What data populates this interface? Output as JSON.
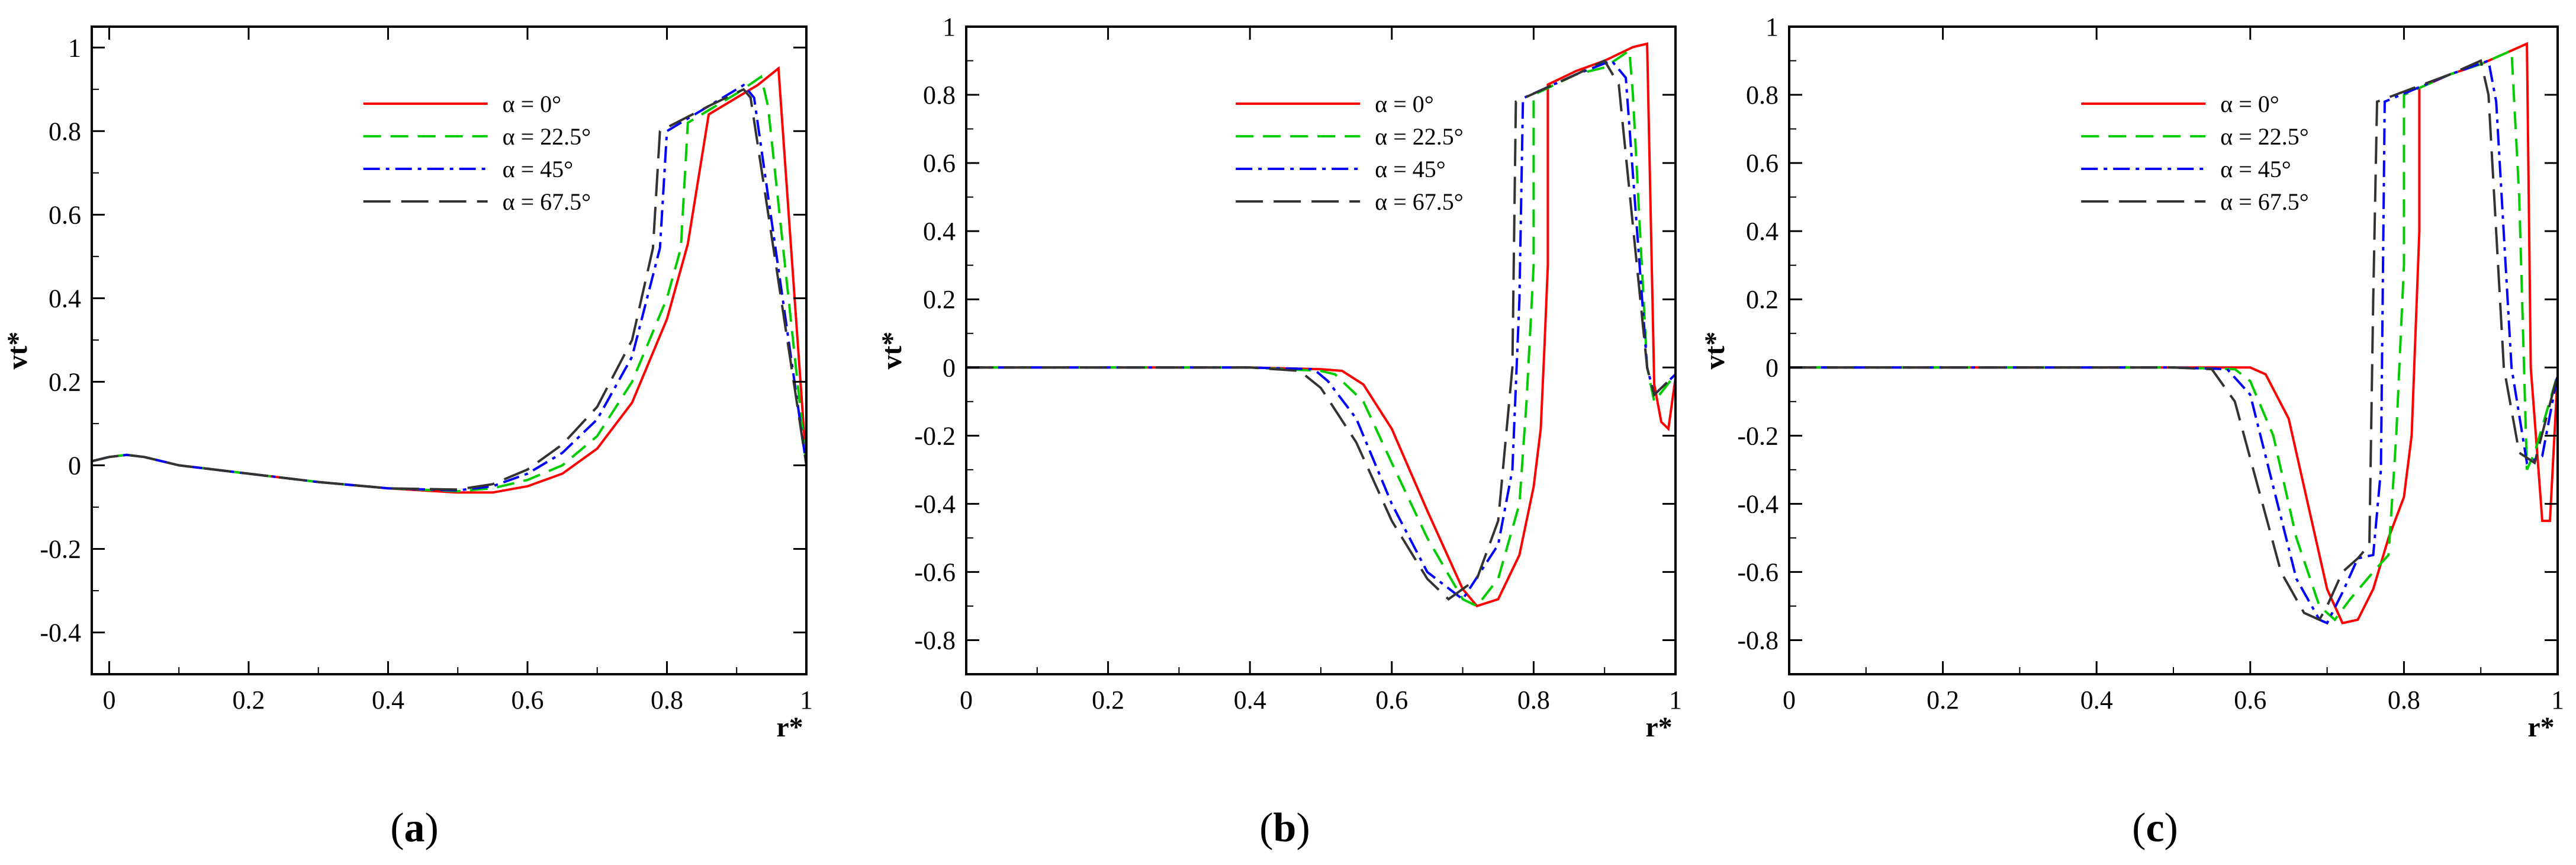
{
  "figure": {
    "panel_labels": [
      "(a)",
      "(b)",
      "(c)"
    ]
  },
  "chart_data": [
    {
      "type": "line",
      "panel": "(a)",
      "xlabel": "r*",
      "ylabel": "vt*",
      "xlim": [
        -0.025,
        1.0
      ],
      "ylim": [
        -0.5,
        1.05
      ],
      "xticks": [
        0,
        0.2,
        0.4,
        0.6,
        0.8,
        1
      ],
      "xtick_labels": [
        "0",
        "0.2",
        "0.4",
        "0.6",
        "0.8",
        "1"
      ],
      "yticks": [
        -0.4,
        -0.2,
        0,
        0.2,
        0.4,
        0.6,
        0.8,
        1
      ],
      "ytick_labels": [
        "-0.4",
        "-0.2",
        "0",
        "0.2",
        "0.4",
        "0.6",
        "0.8",
        "1"
      ],
      "series": [
        {
          "name": "α = 0°",
          "x": [
            -0.025,
            0.0,
            0.025,
            0.05,
            0.1,
            0.2,
            0.3,
            0.4,
            0.5,
            0.55,
            0.6,
            0.65,
            0.7,
            0.75,
            0.8,
            0.83,
            0.86,
            0.9,
            0.93,
            0.96,
            0.965,
            1.0
          ],
          "y": [
            0.01,
            0.02,
            0.025,
            0.02,
            0.0,
            -0.02,
            -0.04,
            -0.055,
            -0.065,
            -0.065,
            -0.05,
            -0.02,
            0.04,
            0.15,
            0.35,
            0.53,
            0.84,
            0.88,
            0.91,
            0.95,
            0.83,
            0.0
          ]
        },
        {
          "name": "α = 22.5°",
          "x": [
            -0.025,
            0.0,
            0.025,
            0.05,
            0.1,
            0.2,
            0.3,
            0.4,
            0.5,
            0.55,
            0.6,
            0.65,
            0.7,
            0.75,
            0.8,
            0.82,
            0.83,
            0.86,
            0.9,
            0.935,
            0.945,
            1.0
          ],
          "y": [
            0.01,
            0.02,
            0.025,
            0.02,
            0.0,
            -0.02,
            -0.04,
            -0.055,
            -0.062,
            -0.055,
            -0.035,
            0.0,
            0.07,
            0.2,
            0.4,
            0.52,
            0.82,
            0.85,
            0.89,
            0.93,
            0.86,
            0.0
          ]
        },
        {
          "name": "α = 45°",
          "x": [
            -0.025,
            0.0,
            0.025,
            0.05,
            0.1,
            0.2,
            0.3,
            0.4,
            0.5,
            0.55,
            0.6,
            0.65,
            0.7,
            0.75,
            0.79,
            0.8,
            0.86,
            0.91,
            0.925,
            1.0
          ],
          "y": [
            0.01,
            0.02,
            0.025,
            0.02,
            0.0,
            -0.02,
            -0.04,
            -0.055,
            -0.06,
            -0.05,
            -0.02,
            0.03,
            0.11,
            0.26,
            0.52,
            0.8,
            0.86,
            0.91,
            0.88,
            0.0
          ]
        },
        {
          "name": "α = 67.5°",
          "x": [
            -0.025,
            0.0,
            0.025,
            0.05,
            0.1,
            0.2,
            0.3,
            0.4,
            0.5,
            0.55,
            0.6,
            0.65,
            0.7,
            0.75,
            0.78,
            0.79,
            0.86,
            0.91,
            0.92,
            1.0
          ],
          "y": [
            0.01,
            0.02,
            0.025,
            0.02,
            0.0,
            -0.02,
            -0.04,
            -0.055,
            -0.058,
            -0.045,
            -0.01,
            0.05,
            0.14,
            0.3,
            0.52,
            0.8,
            0.86,
            0.9,
            0.88,
            0.0
          ]
        }
      ],
      "legend": "upper-center"
    },
    {
      "type": "line",
      "panel": "(b)",
      "xlabel": "r*",
      "ylabel": "vt*",
      "xlim": [
        0,
        1.0
      ],
      "ylim": [
        -0.9,
        1.0
      ],
      "xticks": [
        0,
        0.2,
        0.4,
        0.6,
        0.8,
        1
      ],
      "xtick_labels": [
        "0",
        "0.2",
        "0.4",
        "0.6",
        "0.8",
        "1"
      ],
      "yticks": [
        -0.8,
        -0.6,
        -0.4,
        -0.2,
        0,
        0.2,
        0.4,
        0.6,
        0.8,
        1
      ],
      "ytick_labels": [
        "-0.8",
        "-0.6",
        "-0.4",
        "-0.2",
        "0",
        "0.2",
        "0.4",
        "0.6",
        "0.8",
        "1"
      ],
      "series": [
        {
          "name": "α = 0°",
          "x": [
            0,
            0.1,
            0.2,
            0.3,
            0.4,
            0.5,
            0.53,
            0.56,
            0.6,
            0.65,
            0.7,
            0.72,
            0.75,
            0.78,
            0.8,
            0.81,
            0.815,
            0.82,
            0.82,
            0.86,
            0.9,
            0.94,
            0.96,
            0.97,
            0.98,
            0.99,
            1.0
          ],
          "y": [
            0,
            0,
            0,
            0,
            0,
            -0.005,
            -0.01,
            -0.05,
            -0.18,
            -0.42,
            -0.65,
            -0.7,
            -0.68,
            -0.55,
            -0.35,
            -0.18,
            0.05,
            0.3,
            0.83,
            0.87,
            0.9,
            0.94,
            0.95,
            -0.05,
            -0.16,
            -0.18,
            -0.03
          ]
        },
        {
          "name": "α = 22.5°",
          "x": [
            0,
            0.1,
            0.2,
            0.3,
            0.4,
            0.5,
            0.52,
            0.56,
            0.6,
            0.65,
            0.7,
            0.72,
            0.75,
            0.78,
            0.79,
            0.8,
            0.8,
            0.86,
            0.9,
            0.935,
            0.94,
            0.96,
            0.97,
            1.0
          ],
          "y": [
            0,
            0,
            0,
            0,
            0,
            -0.01,
            -0.02,
            -0.1,
            -0.28,
            -0.5,
            -0.68,
            -0.7,
            -0.62,
            -0.4,
            -0.1,
            0.3,
            0.8,
            0.86,
            0.88,
            0.93,
            0.8,
            0.0,
            -0.1,
            -0.02
          ]
        },
        {
          "name": "α = 45°",
          "x": [
            0,
            0.1,
            0.2,
            0.3,
            0.4,
            0.49,
            0.51,
            0.55,
            0.6,
            0.65,
            0.7,
            0.75,
            0.77,
            0.78,
            0.785,
            0.86,
            0.91,
            0.93,
            0.96,
            0.97,
            1.0
          ],
          "y": [
            0,
            0,
            0,
            0,
            0,
            -0.005,
            -0.04,
            -0.15,
            -0.4,
            -0.6,
            -0.68,
            -0.52,
            -0.3,
            0.2,
            0.79,
            0.86,
            0.9,
            0.85,
            0.0,
            -0.08,
            -0.02
          ]
        },
        {
          "name": "α = 67.5°",
          "x": [
            0,
            0.1,
            0.2,
            0.3,
            0.4,
            0.47,
            0.5,
            0.55,
            0.6,
            0.65,
            0.68,
            0.72,
            0.75,
            0.77,
            0.775,
            0.86,
            0.9,
            0.92,
            0.96,
            0.97,
            1.0
          ],
          "y": [
            0,
            0,
            0,
            0,
            0,
            -0.01,
            -0.06,
            -0.22,
            -0.45,
            -0.62,
            -0.68,
            -0.62,
            -0.45,
            0.0,
            0.78,
            0.86,
            0.9,
            0.83,
            0.0,
            -0.08,
            -0.02
          ]
        }
      ],
      "legend": "upper-center"
    },
    {
      "type": "line",
      "panel": "(c)",
      "xlabel": "r*",
      "ylabel": "vt*",
      "xlim": [
        0,
        1.0
      ],
      "ylim": [
        -0.9,
        1.0
      ],
      "xticks": [
        0,
        0.2,
        0.4,
        0.6,
        0.8,
        1
      ],
      "xtick_labels": [
        "0",
        "0.2",
        "0.4",
        "0.6",
        "0.8",
        "1"
      ],
      "yticks": [
        -0.8,
        -0.6,
        -0.4,
        -0.2,
        0,
        0.2,
        0.4,
        0.6,
        0.8,
        1
      ],
      "ytick_labels": [
        "-0.8",
        "-0.6",
        "-0.4",
        "-0.2",
        "0",
        "0.2",
        "0.4",
        "0.6",
        "0.8",
        "1"
      ],
      "series": [
        {
          "name": "α = 0°",
          "x": [
            0,
            0.1,
            0.2,
            0.3,
            0.4,
            0.5,
            0.6,
            0.62,
            0.65,
            0.68,
            0.7,
            0.72,
            0.74,
            0.76,
            0.78,
            0.8,
            0.81,
            0.815,
            0.82,
            0.82,
            0.86,
            0.9,
            0.94,
            0.96,
            0.965,
            0.975,
            0.98,
            0.99,
            1.0
          ],
          "y": [
            0,
            0,
            0,
            0,
            0,
            0,
            0,
            -0.02,
            -0.15,
            -0.45,
            -0.65,
            -0.75,
            -0.74,
            -0.65,
            -0.5,
            -0.38,
            -0.2,
            0.1,
            0.4,
            0.82,
            0.86,
            0.89,
            0.93,
            0.95,
            0.0,
            -0.3,
            -0.45,
            -0.45,
            -0.02
          ]
        },
        {
          "name": "α = 22.5°",
          "x": [
            0,
            0.1,
            0.2,
            0.3,
            0.4,
            0.5,
            0.58,
            0.6,
            0.63,
            0.66,
            0.69,
            0.71,
            0.73,
            0.76,
            0.78,
            0.79,
            0.8,
            0.8,
            0.86,
            0.9,
            0.94,
            0.95,
            0.96,
            0.97,
            1.0
          ],
          "y": [
            0,
            0,
            0,
            0,
            0,
            0,
            -0.005,
            -0.04,
            -0.2,
            -0.5,
            -0.7,
            -0.74,
            -0.68,
            -0.6,
            -0.55,
            -0.2,
            0.3,
            0.8,
            0.86,
            0.89,
            0.93,
            0.5,
            -0.3,
            -0.25,
            -0.02
          ]
        },
        {
          "name": "α = 45°",
          "x": [
            0,
            0.1,
            0.2,
            0.3,
            0.4,
            0.5,
            0.57,
            0.6,
            0.63,
            0.66,
            0.69,
            0.7,
            0.72,
            0.74,
            0.76,
            0.77,
            0.775,
            0.86,
            0.91,
            0.92,
            0.94,
            0.96,
            0.98,
            1.0
          ],
          "y": [
            0,
            0,
            0,
            0,
            0,
            0,
            -0.005,
            -0.08,
            -0.35,
            -0.62,
            -0.74,
            -0.75,
            -0.66,
            -0.56,
            -0.55,
            -0.3,
            0.78,
            0.86,
            0.9,
            0.78,
            0.0,
            -0.28,
            -0.26,
            -0.02
          ]
        },
        {
          "name": "α = 67.5°",
          "x": [
            0,
            0.1,
            0.2,
            0.3,
            0.4,
            0.5,
            0.55,
            0.58,
            0.61,
            0.64,
            0.67,
            0.69,
            0.7,
            0.72,
            0.74,
            0.755,
            0.76,
            0.765,
            0.86,
            0.9,
            0.91,
            0.93,
            0.95,
            0.97,
            1.0
          ],
          "y": [
            0,
            0,
            0,
            0,
            0,
            0,
            -0.005,
            -0.1,
            -0.35,
            -0.6,
            -0.72,
            -0.74,
            -0.7,
            -0.6,
            -0.56,
            -0.52,
            0.2,
            0.78,
            0.86,
            0.9,
            0.8,
            0.0,
            -0.25,
            -0.28,
            -0.02
          ]
        }
      ],
      "legend": "upper-center"
    }
  ]
}
